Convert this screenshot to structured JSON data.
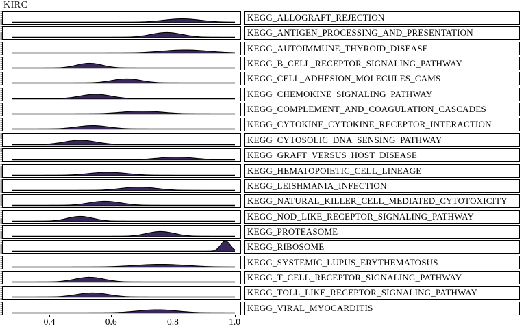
{
  "title": "KIRC",
  "chart_data": {
    "type": "ridgeline-density",
    "title": "KIRC",
    "xlabel": "",
    "ylabel": "",
    "xlim": [
      0.25,
      1.02
    ],
    "x_ticks": [
      0.4,
      0.6,
      0.8,
      1.0
    ],
    "x_tick_labels": [
      "0.4",
      "0.6",
      "0.8",
      "1.0"
    ],
    "grid": "off",
    "legend": "none",
    "colors": {
      "curve_fill": "#38285a",
      "curve_stroke": "#000000",
      "panel_border": "#000000",
      "background": "#ffffff"
    },
    "pathways": [
      {
        "label": "KEGG_ALLOGRAFT_REJECTION",
        "peak_score": 0.83,
        "peak_height": 0.31,
        "width": 0.06
      },
      {
        "label": "KEGG_ANTIGEN_PROCESSING_AND_PRESENTATION",
        "peak_score": 0.78,
        "peak_height": 0.44,
        "width": 0.05
      },
      {
        "label": "KEGG_AUTOIMMUNE_THYROID_DISEASE",
        "peak_score": 0.84,
        "peak_height": 0.28,
        "width": 0.075
      },
      {
        "label": "KEGG_B_CELL_RECEPTOR_SIGNALING_PATHWAY",
        "peak_score": 0.53,
        "peak_height": 0.44,
        "width": 0.042
      },
      {
        "label": "KEGG_CELL_ADHESION_MOLECULES_CAMS",
        "peak_score": 0.65,
        "peak_height": 0.38,
        "width": 0.048
      },
      {
        "label": "KEGG_CHEMOKINE_SIGNALING_PATHWAY",
        "peak_score": 0.55,
        "peak_height": 0.41,
        "width": 0.05
      },
      {
        "label": "KEGG_COMPLEMENT_AND_COAGULATION_CASCADES",
        "peak_score": 0.7,
        "peak_height": 0.25,
        "width": 0.065
      },
      {
        "label": "KEGG_CYTOKINE_CYTOKINE_RECEPTOR_INTERACTION",
        "peak_score": 0.54,
        "peak_height": 0.31,
        "width": 0.052
      },
      {
        "label": "KEGG_CYTOSOLIC_DNA_SENSING_PATHWAY",
        "peak_score": 0.5,
        "peak_height": 0.41,
        "width": 0.052
      },
      {
        "label": "KEGG_GRAFT_VERSUS_HOST_DISEASE",
        "peak_score": 0.81,
        "peak_height": 0.25,
        "width": 0.058
      },
      {
        "label": "KEGG_HEMATOPOIETIC_CELL_LINEAGE",
        "peak_score": 0.59,
        "peak_height": 0.28,
        "width": 0.062
      },
      {
        "label": "KEGG_LEISHMANIA_INFECTION",
        "peak_score": 0.69,
        "peak_height": 0.31,
        "width": 0.058
      },
      {
        "label": "KEGG_NATURAL_KILLER_CELL_MEDIATED_CYTOTOXICITY",
        "peak_score": 0.58,
        "peak_height": 0.38,
        "width": 0.052
      },
      {
        "label": "KEGG_NOD_LIKE_RECEPTOR_SIGNALING_PATHWAY",
        "peak_score": 0.5,
        "peak_height": 0.44,
        "width": 0.042
      },
      {
        "label": "KEGG_PROTEASOME",
        "peak_score": 0.76,
        "peak_height": 0.44,
        "width": 0.045
      },
      {
        "label": "KEGG_RIBOSOME",
        "peak_score": 0.97,
        "peak_height": 0.94,
        "width": 0.016
      },
      {
        "label": "KEGG_SYSTEMIC_LUPUS_ERYTHEMATOSUS",
        "peak_score": 0.76,
        "peak_height": 0.25,
        "width": 0.085
      },
      {
        "label": "KEGG_T_CELL_RECEPTOR_SIGNALING_PATHWAY",
        "peak_score": 0.53,
        "peak_height": 0.44,
        "width": 0.048
      },
      {
        "label": "KEGG_TOLL_LIKE_RECEPTOR_SIGNALING_PATHWAY",
        "peak_score": 0.54,
        "peak_height": 0.38,
        "width": 0.052
      },
      {
        "label": "KEGG_VIRAL_MYOCARDITIS",
        "peak_score": 0.75,
        "peak_height": 0.28,
        "width": 0.065
      }
    ]
  }
}
